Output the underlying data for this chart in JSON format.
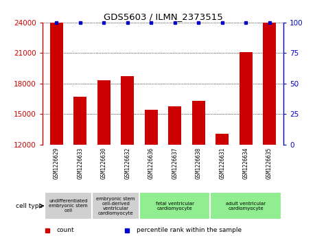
{
  "title": "GDS5603 / ILMN_2373515",
  "samples": [
    "GSM1226629",
    "GSM1226633",
    "GSM1226630",
    "GSM1226632",
    "GSM1226636",
    "GSM1226637",
    "GSM1226638",
    "GSM1226631",
    "GSM1226634",
    "GSM1226635"
  ],
  "counts": [
    24000,
    16700,
    18300,
    18700,
    15400,
    15800,
    16300,
    13100,
    21100,
    24000
  ],
  "percentiles": [
    100,
    100,
    100,
    100,
    100,
    100,
    100,
    100,
    100,
    100
  ],
  "ylim_left": [
    12000,
    24000
  ],
  "ylim_right": [
    0,
    100
  ],
  "yticks_left": [
    12000,
    15000,
    18000,
    21000,
    24000
  ],
  "yticks_right": [
    0,
    25,
    50,
    75,
    100
  ],
  "bar_color": "#cc0000",
  "dot_color": "#0000cc",
  "cell_types": [
    {
      "label": "undifferentiated\nembryonic stem\ncell",
      "start": 0,
      "end": 2,
      "color": "#d0d0d0"
    },
    {
      "label": "embryonic stem\ncell-derived\nventricular\ncardiomyocyte",
      "start": 2,
      "end": 4,
      "color": "#d0d0d0"
    },
    {
      "label": "fetal ventricular\ncardiomyocyte",
      "start": 4,
      "end": 7,
      "color": "#90ee90"
    },
    {
      "label": "adult ventricular\ncardiomyocyte",
      "start": 7,
      "end": 10,
      "color": "#90ee90"
    }
  ],
  "legend_items": [
    {
      "label": "count",
      "color": "#cc0000"
    },
    {
      "label": "percentile rank within the sample",
      "color": "#0000cc"
    }
  ],
  "grid_color": "black",
  "grid_style": "dotted",
  "background_color": "#ffffff",
  "cell_type_label": "cell type",
  "bar_width": 0.55,
  "sample_col_color": "#d0d0d0",
  "spine_color_left": "#cc0000",
  "spine_color_right": "#0000cc"
}
